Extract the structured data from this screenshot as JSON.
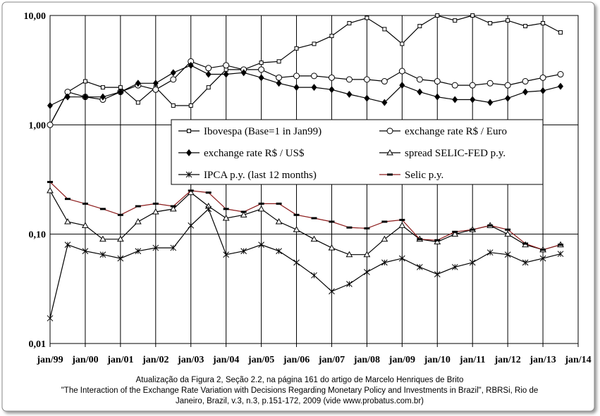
{
  "chart_data": {
    "type": "line",
    "log_y": true,
    "grid": true,
    "x": [
      "1999-01",
      "1999-07",
      "2000-01",
      "2000-07",
      "2001-01",
      "2001-07",
      "2002-01",
      "2002-07",
      "2003-01",
      "2003-07",
      "2004-01",
      "2004-07",
      "2005-01",
      "2005-07",
      "2006-01",
      "2006-07",
      "2007-01",
      "2007-07",
      "2008-01",
      "2008-07",
      "2009-01",
      "2009-07",
      "2010-01",
      "2010-07",
      "2011-01",
      "2011-07",
      "2012-01",
      "2012-07",
      "2013-01",
      "2013-07"
    ],
    "xlim": [
      "1999-01",
      "2014-01"
    ],
    "xticks": [
      {
        "value": "1999-01",
        "label": "jan/99"
      },
      {
        "value": "2000-01",
        "label": "jan/00"
      },
      {
        "value": "2001-01",
        "label": "jan/01"
      },
      {
        "value": "2002-01",
        "label": "jan/02"
      },
      {
        "value": "2003-01",
        "label": "jan/03"
      },
      {
        "value": "2004-01",
        "label": "jan/04"
      },
      {
        "value": "2005-01",
        "label": "jan/05"
      },
      {
        "value": "2006-01",
        "label": "jan/06"
      },
      {
        "value": "2007-01",
        "label": "jan/07"
      },
      {
        "value": "2008-01",
        "label": "jan/08"
      },
      {
        "value": "2009-01",
        "label": "jan/09"
      },
      {
        "value": "2010-01",
        "label": "jan/10"
      },
      {
        "value": "2011-01",
        "label": "jan/11"
      },
      {
        "value": "2012-01",
        "label": "jan/12"
      },
      {
        "value": "2013-01",
        "label": "jan/13"
      },
      {
        "value": "2014-01",
        "label": "jan/14"
      }
    ],
    "ylim": [
      0.01,
      10
    ],
    "yticks": [
      {
        "value": 10,
        "label": "10,00"
      },
      {
        "value": 1,
        "label": "1,00"
      },
      {
        "value": 0.1,
        "label": "0,10"
      },
      {
        "value": 0.01,
        "label": "0,01"
      }
    ],
    "series": [
      {
        "name": "Ibovespa (Base=1 in Jan99)",
        "color": "#000000",
        "marker": "square-open",
        "values": [
          1.0,
          2.0,
          2.5,
          2.2,
          2.2,
          1.6,
          2.2,
          1.5,
          1.5,
          2.2,
          3.2,
          3.2,
          3.7,
          3.8,
          5.0,
          5.5,
          6.5,
          8.5,
          9.5,
          7.5,
          5.5,
          8.0,
          10.0,
          9.0,
          10.0,
          8.5,
          9.0,
          8.0,
          8.5,
          7.0
        ]
      },
      {
        "name": "exchange rate R$ / Euro",
        "color": "#000000",
        "marker": "circle-open",
        "values": [
          1.0,
          2.0,
          1.8,
          1.7,
          2.0,
          2.3,
          2.1,
          2.6,
          3.8,
          3.3,
          3.5,
          3.2,
          3.2,
          2.7,
          2.8,
          2.8,
          2.7,
          2.6,
          2.6,
          2.5,
          3.1,
          2.6,
          2.5,
          2.3,
          2.3,
          2.4,
          2.3,
          2.5,
          2.7,
          2.9
        ]
      },
      {
        "name": "exchange rate R$ / US$",
        "color": "#000000",
        "marker": "diamond",
        "values": [
          1.5,
          1.8,
          1.8,
          1.8,
          2.0,
          2.4,
          2.4,
          3.0,
          3.5,
          2.9,
          2.9,
          3.0,
          2.7,
          2.4,
          2.2,
          2.2,
          2.1,
          1.9,
          1.75,
          1.6,
          2.3,
          2.0,
          1.8,
          1.7,
          1.7,
          1.6,
          1.75,
          2.0,
          2.05,
          2.25
        ]
      },
      {
        "name": "spread SELIC-FED p.y.",
        "color": "#000000",
        "marker": "triangle-open",
        "values": [
          0.25,
          0.13,
          0.12,
          0.09,
          0.09,
          0.13,
          0.16,
          0.17,
          0.24,
          0.18,
          0.14,
          0.15,
          0.17,
          0.13,
          0.11,
          0.09,
          0.075,
          0.065,
          0.065,
          0.09,
          0.12,
          0.09,
          0.085,
          0.1,
          0.11,
          0.12,
          0.1,
          0.08,
          0.072,
          0.08
        ]
      },
      {
        "name": "IPCA p.y. (last 12 months)",
        "color": "#000000",
        "marker": "star",
        "values": [
          0.017,
          0.08,
          0.07,
          0.065,
          0.06,
          0.07,
          0.075,
          0.075,
          0.12,
          0.17,
          0.065,
          0.07,
          0.08,
          0.07,
          0.055,
          0.042,
          0.03,
          0.035,
          0.045,
          0.055,
          0.06,
          0.05,
          0.043,
          0.05,
          0.055,
          0.068,
          0.065,
          0.055,
          0.06,
          0.066
        ]
      },
      {
        "name": "Selic p.y.",
        "color": "#8b1a1a",
        "marker": "dash",
        "values": [
          0.3,
          0.21,
          0.19,
          0.17,
          0.15,
          0.18,
          0.19,
          0.18,
          0.25,
          0.24,
          0.17,
          0.16,
          0.19,
          0.19,
          0.15,
          0.14,
          0.13,
          0.115,
          0.113,
          0.13,
          0.135,
          0.09,
          0.088,
          0.105,
          0.11,
          0.12,
          0.11,
          0.082,
          0.072,
          0.08
        ]
      }
    ],
    "notes": [
      "Atualização da Figura 2, Seção 2.2, na página 161 do artigo de Marcelo Henriques de Brito",
      "\"The Interaction of the Exchange Rate Variation with Decisions Regarding Monetary Policy and Investments in Brazil\", RBRSi, Rio de",
      "Janeiro, Brazil, v.3, n.3, p.151-172, 2009  (vide www.probatus.com.br)"
    ]
  }
}
